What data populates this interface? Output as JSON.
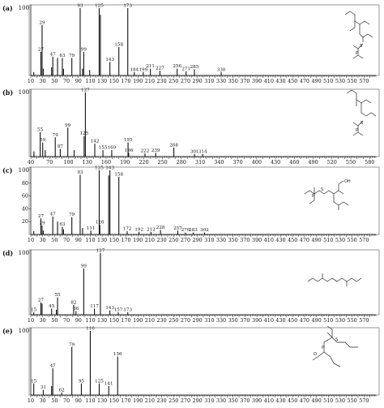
{
  "chart_data": [
    {
      "type": "bar",
      "panel": "(a)",
      "y_max_label": "100",
      "xlim": [
        10,
        590
      ],
      "ylim": [
        0,
        100
      ],
      "x_ticks": [
        10,
        20,
        30,
        40,
        50,
        60,
        70,
        80,
        90,
        100,
        110,
        120,
        130,
        140,
        150,
        160,
        170,
        180,
        190,
        200,
        210,
        220,
        230,
        240,
        250,
        260,
        270,
        280,
        290,
        300,
        310,
        320,
        330,
        340,
        350,
        360,
        370,
        380,
        390,
        400,
        410,
        420,
        430,
        440,
        450,
        460,
        470,
        480,
        490,
        500,
        510,
        520,
        530,
        540,
        550,
        560,
        570,
        580
      ],
      "x_tick_labels": [
        10,
        30,
        50,
        70,
        90,
        110,
        130,
        150,
        170,
        190,
        210,
        230,
        250,
        270,
        290,
        310,
        330,
        350,
        370,
        390,
        410,
        430,
        450,
        470,
        490,
        510,
        530,
        550,
        570
      ],
      "peaks": [
        {
          "x": 15,
          "y": 5
        },
        {
          "x": 27,
          "y": 35,
          "label": "27"
        },
        {
          "x": 29,
          "y": 75,
          "label": "29"
        },
        {
          "x": 31,
          "y": 10
        },
        {
          "x": 45,
          "y": 12
        },
        {
          "x": 47,
          "y": 28,
          "label": "47"
        },
        {
          "x": 55,
          "y": 26
        },
        {
          "x": 63,
          "y": 26,
          "label": "63"
        },
        {
          "x": 65,
          "y": 10
        },
        {
          "x": 79,
          "y": 26,
          "label": "79"
        },
        {
          "x": 93,
          "y": 100,
          "label": "93"
        },
        {
          "x": 97,
          "y": 10
        },
        {
          "x": 99,
          "y": 35,
          "label": "99"
        },
        {
          "x": 109,
          "y": 8
        },
        {
          "x": 125,
          "y": 100,
          "label": "125"
        },
        {
          "x": 127,
          "y": 90
        },
        {
          "x": 143,
          "y": 20,
          "label": "143"
        },
        {
          "x": 158,
          "y": 42,
          "label": "158"
        },
        {
          "x": 173,
          "y": 100,
          "label": "173"
        },
        {
          "x": 184,
          "y": 5,
          "label": "184"
        },
        {
          "x": 199,
          "y": 5,
          "label": "199"
        },
        {
          "x": 211,
          "y": 10,
          "label": "211"
        },
        {
          "x": 227,
          "y": 7,
          "label": "227"
        },
        {
          "x": 256,
          "y": 10,
          "label": "256"
        },
        {
          "x": 271,
          "y": 6,
          "label": "271"
        },
        {
          "x": 285,
          "y": 9,
          "label": "285"
        },
        {
          "x": 330,
          "y": 5,
          "label": "330"
        }
      ]
    },
    {
      "type": "bar",
      "panel": "(b)",
      "y_max_label": "100",
      "xlim": [
        40,
        590
      ],
      "ylim": [
        0,
        100
      ],
      "x_ticks": [
        40,
        50,
        60,
        70,
        80,
        90,
        100,
        110,
        120,
        130,
        140,
        150,
        160,
        170,
        180,
        190,
        200,
        210,
        220,
        230,
        240,
        250,
        260,
        270,
        280,
        290,
        300,
        310,
        320,
        330,
        340,
        350,
        360,
        370,
        380,
        390,
        400,
        410,
        420,
        430,
        440,
        450,
        460,
        470,
        480,
        490,
        500,
        510,
        520,
        530,
        540,
        550,
        560,
        570,
        580
      ],
      "x_tick_labels": [
        40,
        70,
        100,
        130,
        160,
        190,
        220,
        250,
        280,
        310,
        340,
        370,
        400,
        430,
        460,
        490,
        520,
        550,
        580
      ],
      "peaks": [
        {
          "x": 45,
          "y": 8
        },
        {
          "x": 55,
          "y": 38,
          "label": "55"
        },
        {
          "x": 59,
          "y": 22,
          "label": "59"
        },
        {
          "x": 63,
          "y": 10
        },
        {
          "x": 79,
          "y": 30,
          "label": "79"
        },
        {
          "x": 87,
          "y": 12,
          "label": "87"
        },
        {
          "x": 99,
          "y": 45,
          "label": "99"
        },
        {
          "x": 109,
          "y": 10
        },
        {
          "x": 125,
          "y": 32,
          "label": "125"
        },
        {
          "x": 127,
          "y": 100,
          "label": "127"
        },
        {
          "x": 142,
          "y": 20,
          "label": "142"
        },
        {
          "x": 155,
          "y": 10,
          "label": "155"
        },
        {
          "x": 169,
          "y": 10,
          "label": "169"
        },
        {
          "x": 195,
          "y": 22,
          "label": "195"
        },
        {
          "x": 196,
          "y": 6,
          "label": "196"
        },
        {
          "x": 222,
          "y": 5,
          "label": "222"
        },
        {
          "x": 239,
          "y": 6,
          "label": "239"
        },
        {
          "x": 268,
          "y": 14,
          "label": "268"
        },
        {
          "x": 301,
          "y": 4,
          "label": "301"
        },
        {
          "x": 314,
          "y": 4,
          "label": "314"
        }
      ]
    },
    {
      "type": "bar",
      "panel": "(c)",
      "y_max_label": "100",
      "xlim": [
        10,
        590
      ],
      "ylim": [
        0,
        100
      ],
      "y_ticks": [
        20,
        40,
        60,
        80,
        100
      ],
      "x_ticks": [
        10,
        20,
        30,
        40,
        50,
        60,
        70,
        80,
        90,
        100,
        110,
        120,
        130,
        140,
        150,
        160,
        170,
        180,
        190,
        200,
        210,
        220,
        230,
        240,
        250,
        260,
        270,
        280,
        290,
        300,
        310,
        320,
        330,
        340,
        350,
        360,
        370,
        380,
        390,
        400,
        410,
        420,
        430,
        440,
        450,
        460,
        470,
        480,
        490,
        500,
        510,
        520,
        530,
        540,
        550,
        560,
        570,
        580
      ],
      "x_tick_labels": [
        10,
        30,
        50,
        70,
        90,
        110,
        130,
        150,
        170,
        190,
        210,
        230,
        250,
        270,
        290,
        310,
        330,
        350,
        370,
        390,
        410,
        430,
        450,
        470,
        490,
        510,
        530,
        550,
        570
      ],
      "peaks": [
        {
          "x": 15,
          "y": 5
        },
        {
          "x": 27,
          "y": 25,
          "label": "27"
        },
        {
          "x": 29,
          "y": 14,
          "label": "29"
        },
        {
          "x": 31,
          "y": 6
        },
        {
          "x": 47,
          "y": 28,
          "label": "47"
        },
        {
          "x": 55,
          "y": 20
        },
        {
          "x": 63,
          "y": 12,
          "label": "63"
        },
        {
          "x": 65,
          "y": 8
        },
        {
          "x": 79,
          "y": 27,
          "label": "79"
        },
        {
          "x": 93,
          "y": 93,
          "label": "93"
        },
        {
          "x": 97,
          "y": 10
        },
        {
          "x": 111,
          "y": 6,
          "label": "111"
        },
        {
          "x": 125,
          "y": 100,
          "label": "125"
        },
        {
          "x": 126,
          "y": 15,
          "label": "126"
        },
        {
          "x": 141,
          "y": 92
        },
        {
          "x": 143,
          "y": 100,
          "label": "143"
        },
        {
          "x": 158,
          "y": 90,
          "label": "158"
        },
        {
          "x": 172,
          "y": 5,
          "label": "172"
        },
        {
          "x": 192,
          "y": 4,
          "label": "192"
        },
        {
          "x": 212,
          "y": 4,
          "label": "212"
        },
        {
          "x": 228,
          "y": 7,
          "label": "228"
        },
        {
          "x": 257,
          "y": 6,
          "label": "257"
        },
        {
          "x": 270,
          "y": 3,
          "label": "270"
        },
        {
          "x": 283,
          "y": 3,
          "label": "283"
        },
        {
          "x": 302,
          "y": 3,
          "label": "302"
        }
      ]
    },
    {
      "type": "bar",
      "panel": "(d)",
      "y_max_label": "100",
      "xlim": [
        10,
        590
      ],
      "ylim": [
        0,
        100
      ],
      "x_ticks": [
        10,
        20,
        30,
        40,
        50,
        60,
        70,
        80,
        90,
        100,
        110,
        120,
        130,
        140,
        150,
        160,
        170,
        180,
        190,
        200,
        210,
        220,
        230,
        240,
        250,
        260,
        270,
        280,
        290,
        300,
        310,
        320,
        330,
        340,
        350,
        360,
        370,
        380,
        390,
        400,
        410,
        420,
        430,
        440,
        450,
        460,
        470,
        480,
        490,
        500,
        510,
        520,
        530,
        540,
        550,
        560,
        570,
        580
      ],
      "x_tick_labels": [
        10,
        30,
        50,
        70,
        90,
        110,
        130,
        150,
        170,
        190,
        210,
        230,
        250,
        270,
        290,
        310,
        330,
        350,
        370,
        390,
        410,
        430,
        450,
        470,
        490,
        510,
        530,
        550,
        570
      ],
      "peaks": [
        {
          "x": 15,
          "y": 4,
          "label": "15"
        },
        {
          "x": 27,
          "y": 20,
          "label": "27"
        },
        {
          "x": 29,
          "y": 18
        },
        {
          "x": 45,
          "y": 10,
          "label": "45"
        },
        {
          "x": 53,
          "y": 8
        },
        {
          "x": 55,
          "y": 28,
          "label": "55"
        },
        {
          "x": 82,
          "y": 16,
          "label": "82"
        },
        {
          "x": 86,
          "y": 6,
          "label": "86"
        },
        {
          "x": 99,
          "y": 75,
          "label": "99"
        },
        {
          "x": 117,
          "y": 10,
          "label": "117"
        },
        {
          "x": 127,
          "y": 100,
          "label": "127"
        },
        {
          "x": 143,
          "y": 7,
          "label": "143"
        },
        {
          "x": 157,
          "y": 4,
          "label": "157"
        },
        {
          "x": 173,
          "y": 4,
          "label": "173"
        }
      ]
    },
    {
      "type": "bar",
      "panel": "(e)",
      "y_max_label": "100",
      "xlim": [
        10,
        590
      ],
      "ylim": [
        0,
        100
      ],
      "x_ticks": [
        10,
        20,
        30,
        40,
        50,
        60,
        70,
        80,
        90,
        100,
        110,
        120,
        130,
        140,
        150,
        160,
        170,
        180,
        190,
        200,
        210,
        220,
        230,
        240,
        250,
        260,
        270,
        280,
        290,
        300,
        310,
        320,
        330,
        340,
        350,
        360,
        370,
        380,
        390,
        400,
        410,
        420,
        430,
        440,
        450,
        460,
        470,
        480,
        490,
        500,
        510,
        520,
        530,
        540,
        550,
        560,
        570,
        580
      ],
      "x_tick_labels": [
        10,
        30,
        50,
        70,
        90,
        110,
        130,
        150,
        170,
        190,
        210,
        230,
        250,
        270,
        290,
        310,
        330,
        350,
        370,
        390,
        410,
        430,
        450,
        470,
        490,
        510,
        530,
        550,
        570
      ],
      "peaks": [
        {
          "x": 15,
          "y": 18,
          "label": "15"
        },
        {
          "x": 31,
          "y": 8,
          "label": "31"
        },
        {
          "x": 45,
          "y": 14
        },
        {
          "x": 47,
          "y": 42,
          "label": "47"
        },
        {
          "x": 62,
          "y": 4,
          "label": "62"
        },
        {
          "x": 79,
          "y": 75,
          "label": "79"
        },
        {
          "x": 95,
          "y": 18,
          "label": "95"
        },
        {
          "x": 110,
          "y": 100,
          "label": "110"
        },
        {
          "x": 125,
          "y": 18,
          "label": "125"
        },
        {
          "x": 141,
          "y": 14,
          "label": "141"
        },
        {
          "x": 156,
          "y": 60,
          "label": "156"
        }
      ]
    }
  ],
  "structures": [
    {
      "name": "structure-a",
      "labels": [
        "P",
        "S",
        "O",
        "O"
      ]
    },
    {
      "name": "structure-b",
      "labels": [
        "P",
        "S",
        "O"
      ]
    },
    {
      "name": "structure-c",
      "labels": [
        "P",
        "S",
        "OH"
      ]
    },
    {
      "name": "structure-d",
      "labels": []
    },
    {
      "name": "structure-e",
      "labels": [
        "P",
        "S",
        "O"
      ]
    }
  ]
}
